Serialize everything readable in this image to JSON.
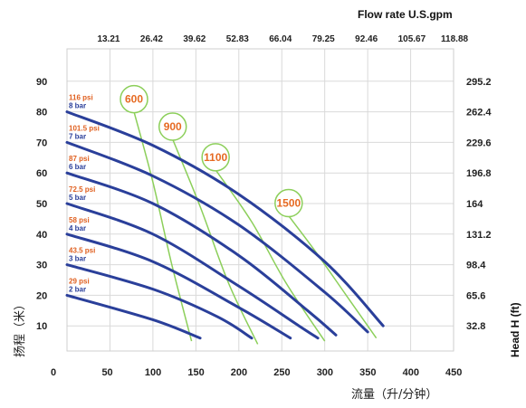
{
  "chart_data": {
    "type": "line",
    "top_axis_title": "Flow rate U.S.gpm",
    "top_ticks": [
      "13.21",
      "26.42",
      "39.62",
      "52.83",
      "66.04",
      "79.25",
      "92.46",
      "105.67",
      "118.88"
    ],
    "xlabel": "流量（升/分钟）",
    "ylabel": "扬程（米）",
    "ylabel_right": "Head H (ft)",
    "x_ticks": [
      0,
      50,
      100,
      150,
      200,
      250,
      300,
      350,
      400,
      450
    ],
    "y_ticks": [
      10,
      20,
      30,
      40,
      50,
      60,
      70,
      80,
      90
    ],
    "right_ticks": [
      "32.8",
      "65.6",
      "98.4",
      "131.2",
      "164",
      "196.8",
      "229.6",
      "262.4",
      "295.2"
    ],
    "xlim": [
      0,
      450
    ],
    "ylim": [
      0,
      100
    ],
    "grid": true,
    "pressure_series": [
      {
        "psi": "116 psi",
        "bar": "8 bar",
        "x": [
          0,
          100,
          200,
          300,
          368
        ],
        "y": [
          80,
          69,
          53,
          31,
          10
        ]
      },
      {
        "psi": "101.5 psi",
        "bar": "7 bar",
        "x": [
          0,
          100,
          200,
          300,
          350
        ],
        "y": [
          70,
          59,
          43,
          21,
          8
        ]
      },
      {
        "psi": "87 psi",
        "bar": "6 bar",
        "x": [
          0,
          100,
          200,
          280,
          313
        ],
        "y": [
          60,
          50,
          33,
          15,
          7
        ]
      },
      {
        "psi": "72.5 psi",
        "bar": "5 bar",
        "x": [
          0,
          100,
          200,
          270,
          292
        ],
        "y": [
          50,
          40,
          23,
          10,
          6
        ]
      },
      {
        "psi": "58 psi",
        "bar": "4 bar",
        "x": [
          0,
          100,
          200,
          260
        ],
        "y": [
          40,
          31,
          16,
          6
        ]
      },
      {
        "psi": "43.5 psi",
        "bar": "3 bar",
        "x": [
          0,
          100,
          175,
          215
        ],
        "y": [
          30,
          22,
          13,
          6
        ]
      },
      {
        "psi": "29 psi",
        "bar": "2 bar",
        "x": [
          0,
          100,
          155
        ],
        "y": [
          20,
          12,
          6
        ]
      }
    ],
    "air_curves": [
      {
        "label": "600",
        "x": [
          78,
          100,
          122,
          145
        ],
        "y": [
          80,
          57,
          30,
          5
        ]
      },
      {
        "label": "900",
        "x": [
          123,
          155,
          188,
          222
        ],
        "y": [
          71,
          49,
          24,
          4
        ]
      },
      {
        "label": "1100",
        "x": [
          173,
          215,
          255,
          300
        ],
        "y": [
          61,
          44,
          24,
          5
        ]
      },
      {
        "label": "1500",
        "x": [
          258,
          290,
          325,
          360
        ],
        "y": [
          46,
          34,
          20,
          6
        ]
      }
    ],
    "colors": {
      "pressure": "#2a3f9a",
      "air": "#8ccf5a",
      "psi": "#e06020",
      "bar": "#2a3f9a",
      "bubble_text": "#e66a22"
    }
  }
}
